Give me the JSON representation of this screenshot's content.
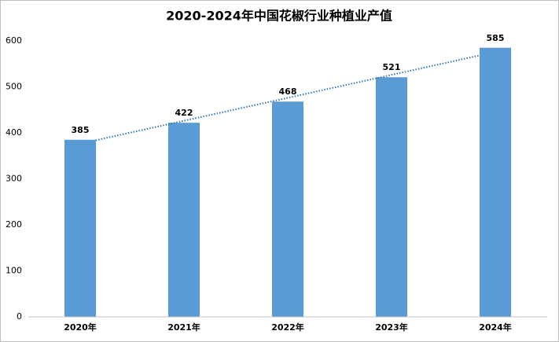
{
  "chart_data": {
    "type": "bar",
    "title": "2020-2024年中国花椒行业种植业产值",
    "categories": [
      "2020年",
      "2021年",
      "2022年",
      "2023年",
      "2024年"
    ],
    "values": [
      385,
      422,
      468,
      521,
      585
    ],
    "color": "#5b9bd5",
    "ylim": [
      0,
      600
    ],
    "yticks": [
      0,
      100,
      200,
      300,
      400,
      500,
      600
    ],
    "grid": false,
    "trendline": true,
    "trendline_color": "#2e75b6"
  }
}
